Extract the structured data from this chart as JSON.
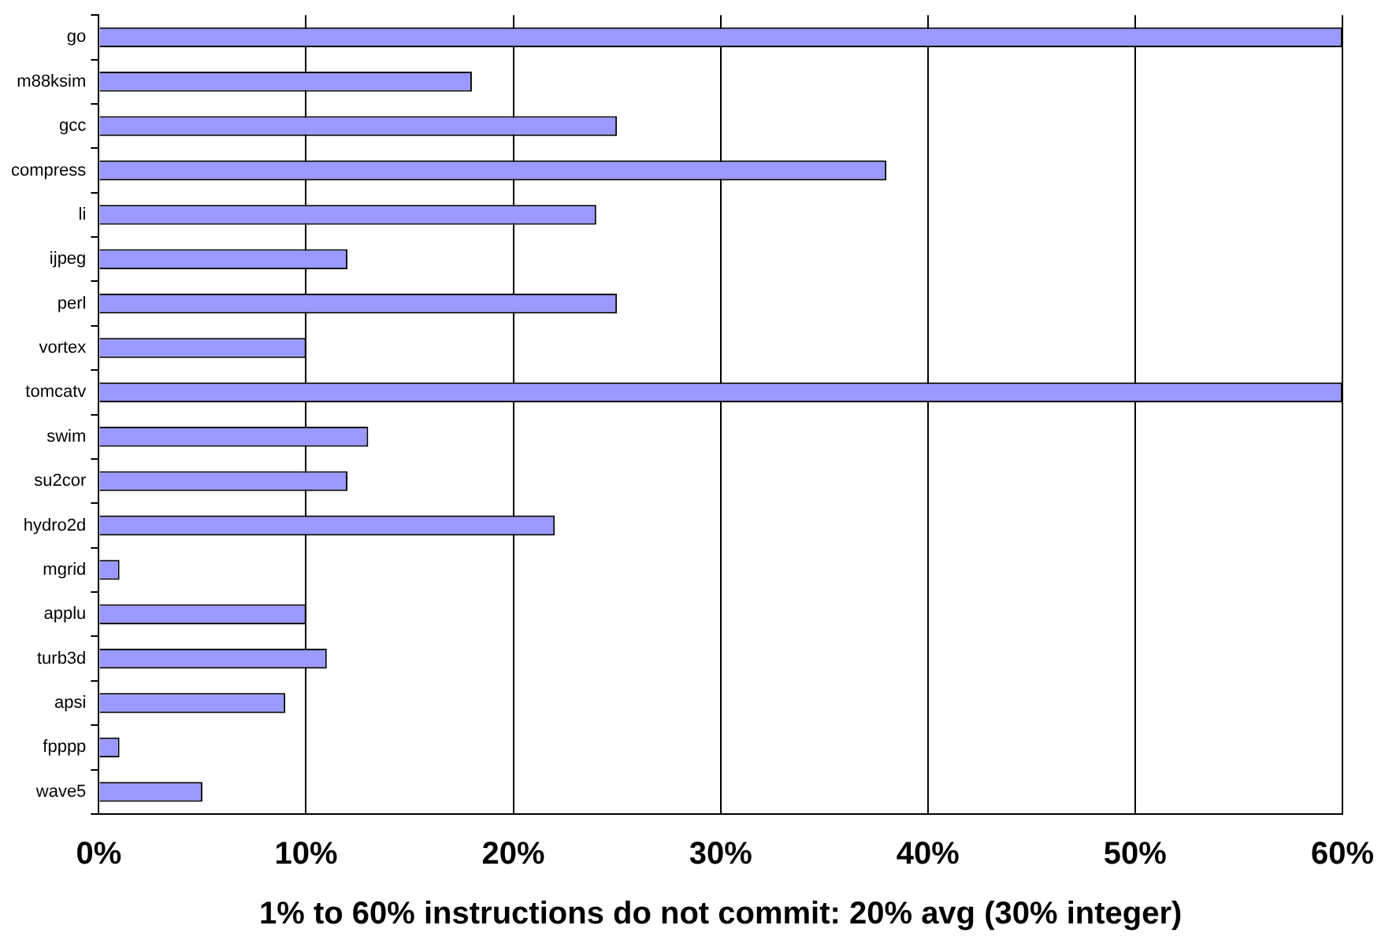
{
  "chart_data": {
    "type": "bar",
    "orientation": "horizontal",
    "xlabel": "1% to 60% instructions do not commit: 20% avg (30% integer)",
    "categories": [
      "go",
      "m88ksim",
      "gcc",
      "compress",
      "li",
      "ijpeg",
      "perl",
      "vortex",
      "tomcatv",
      "swim",
      "su2cor",
      "hydro2d",
      "mgrid",
      "applu",
      "turb3d",
      "apsi",
      "fpppp",
      "wave5"
    ],
    "values": [
      60,
      18,
      25,
      38,
      24,
      12,
      25,
      10,
      60,
      13,
      12,
      22,
      1,
      10,
      11,
      9,
      1,
      5
    ],
    "color": "#9999ff",
    "xlim": [
      0,
      60
    ],
    "xticks": [
      {
        "value": 0,
        "label": "0%"
      },
      {
        "value": 10,
        "label": "10%"
      },
      {
        "value": 20,
        "label": "20%"
      },
      {
        "value": 30,
        "label": "30%"
      },
      {
        "value": 40,
        "label": "40%"
      },
      {
        "value": 50,
        "label": "50%"
      },
      {
        "value": 60,
        "label": "60%"
      }
    ],
    "grid": "x",
    "legend": false
  }
}
